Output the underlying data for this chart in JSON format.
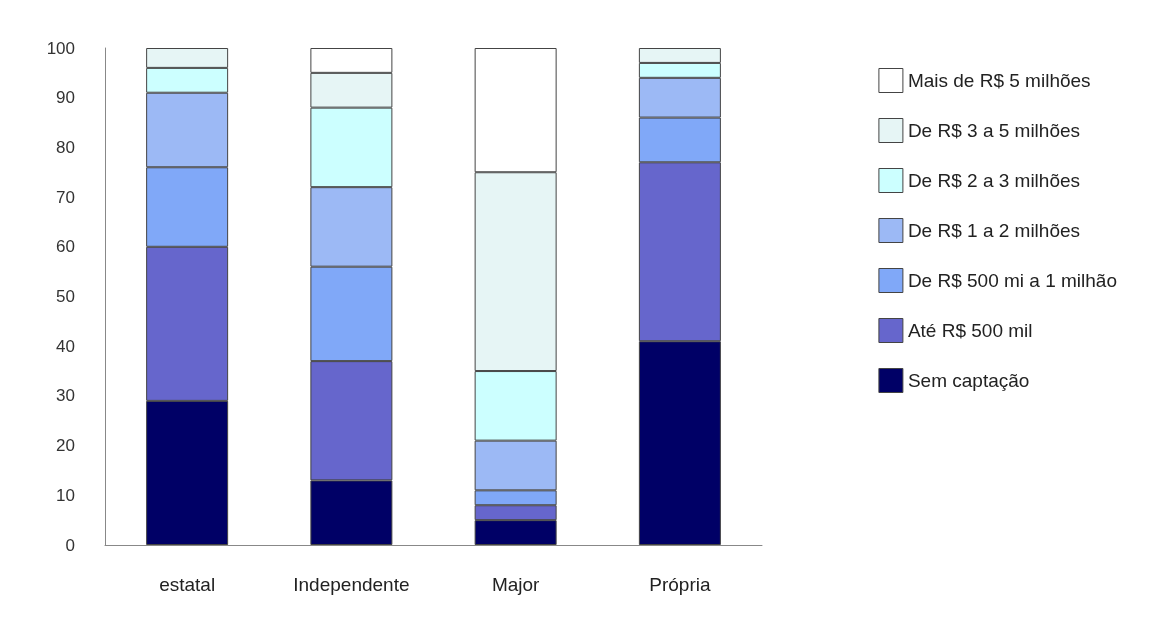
{
  "chart_data": {
    "type": "bar",
    "stacked": true,
    "categories": [
      "estatal",
      "Independente",
      "Major",
      "Própria"
    ],
    "series": [
      {
        "name": "Sem captação",
        "color": "#000066",
        "values": [
          29,
          13,
          5,
          41
        ]
      },
      {
        "name": "Até R$ 500 mil",
        "color": "#6666cc",
        "values": [
          31,
          24,
          3,
          36
        ]
      },
      {
        "name": "De R$ 500 mi a 1 milhão",
        "color": "#80a8f8",
        "values": [
          16,
          19,
          3,
          9
        ]
      },
      {
        "name": "De R$ 1 a 2 milhões",
        "color": "#9cb9f5",
        "values": [
          15,
          16,
          10,
          8
        ]
      },
      {
        "name": "De R$ 2 a 3 milhões",
        "color": "#ccffff",
        "values": [
          5,
          16,
          14,
          3
        ]
      },
      {
        "name": "De R$ 3 a 5 milhões",
        "color": "#e6f5f5",
        "values": [
          4,
          7,
          40,
          3
        ]
      },
      {
        "name": "Mais de R$ 5 milhões",
        "color": "#ffffff",
        "values": [
          0,
          5,
          25,
          0
        ]
      }
    ],
    "ylim": [
      0,
      100
    ],
    "yticks": [
      0,
      10,
      20,
      30,
      40,
      50,
      60,
      70,
      80,
      90,
      100
    ],
    "grid": false,
    "legend": "right"
  }
}
